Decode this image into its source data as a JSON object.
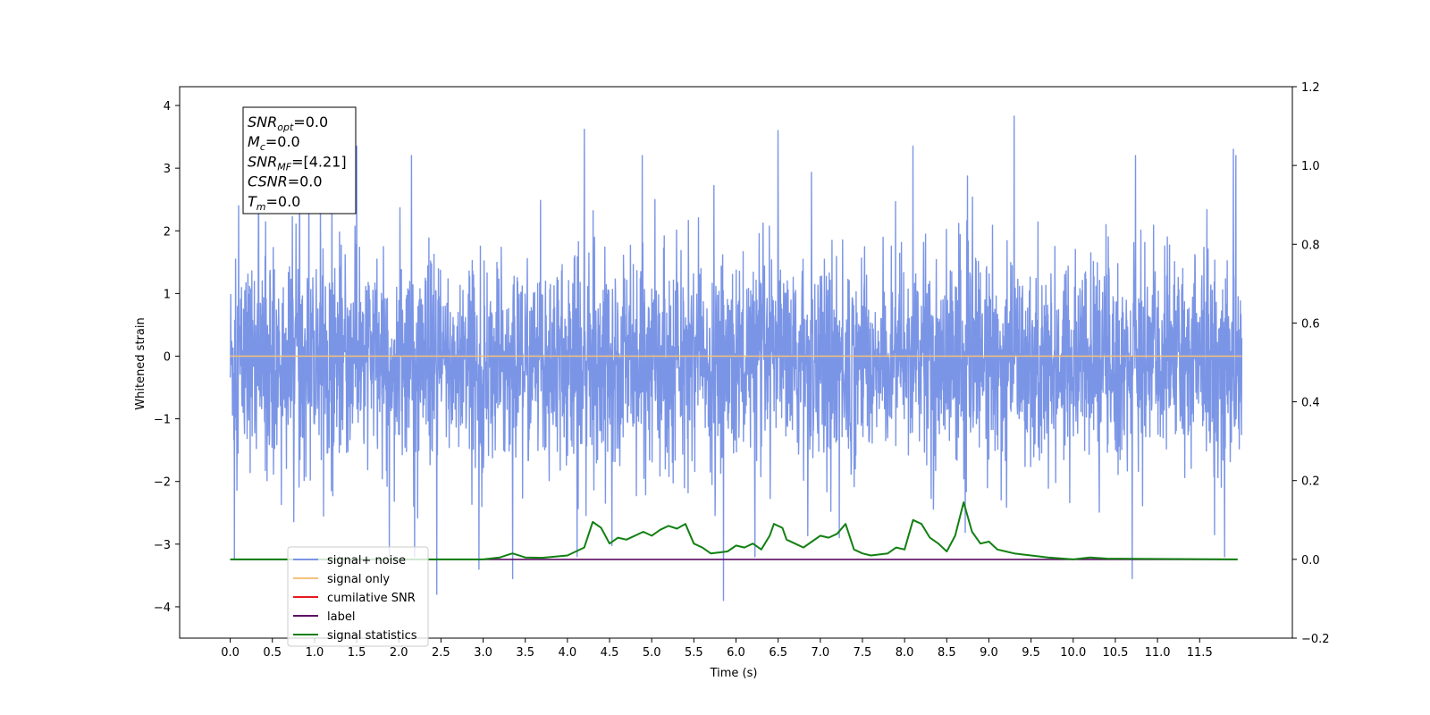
{
  "chart_data": {
    "type": "line",
    "xlabel": "Time (s)",
    "ylabel": "Whitened strain",
    "xlim": [
      -0.6,
      12.6
    ],
    "ylim": [
      -4.5,
      4.3
    ],
    "y2lim": [
      -0.2,
      1.2
    ],
    "x_ticks": [
      "0.0",
      "0.5",
      "1.0",
      "1.5",
      "2.0",
      "2.5",
      "3.0",
      "3.5",
      "4.0",
      "4.5",
      "5.0",
      "5.5",
      "6.0",
      "6.5",
      "7.0",
      "7.5",
      "8.0",
      "8.5",
      "9.0",
      "9.5",
      "10.0",
      "10.5",
      "11.0",
      "11.5"
    ],
    "y_ticks": [
      "4",
      "3",
      "2",
      "1",
      "0",
      "−1",
      "−2",
      "−3",
      "−4"
    ],
    "y2_ticks": [
      "1.2",
      "1.0",
      "0.8",
      "0.6",
      "0.4",
      "0.2",
      "0.0",
      "−0.2"
    ],
    "colors": {
      "signal_noise": "#7b95e6",
      "signal_only": "#f5c27a",
      "cumulative_snr": "#e8191f",
      "label": "#5b0d63",
      "signal_statistics": "#128012"
    },
    "legend": {
      "position": "lower-left",
      "entries": [
        "signal+ noise",
        "signal only",
        "cumilative SNR",
        "label",
        "signal statistics"
      ]
    },
    "annotation_lines": [
      {
        "name": "SNR",
        "sub": "opt",
        "rest": "=0.0"
      },
      {
        "name": "M",
        "sub": "c",
        "rest": "=0.0"
      },
      {
        "name": "SNR",
        "sub": "MF",
        "rest": "=[4.21]"
      },
      {
        "name": "CSNR",
        "sub": "",
        "rest": "=0.0"
      },
      {
        "name": "T",
        "sub": "m",
        "rest": "=0.0"
      }
    ],
    "series": [
      {
        "name": "signal+ noise",
        "axis": "left",
        "x_range": [
          0.0,
          12.0
        ],
        "typical_band": [
          -1.5,
          1.3
        ],
        "peaks": [
          {
            "x": 0.05,
            "y": -3.25
          },
          {
            "x": 0.1,
            "y": 2.4
          },
          {
            "x": 1.5,
            "y": 3.35
          },
          {
            "x": 2.15,
            "y": 3.2
          },
          {
            "x": 2.45,
            "y": -3.8
          },
          {
            "x": 2.95,
            "y": -3.4
          },
          {
            "x": 3.35,
            "y": -3.55
          },
          {
            "x": 4.2,
            "y": 3.62
          },
          {
            "x": 5.85,
            "y": -3.9
          },
          {
            "x": 6.5,
            "y": 3.6
          },
          {
            "x": 8.1,
            "y": 3.35
          },
          {
            "x": 9.3,
            "y": 3.83
          },
          {
            "x": 10.7,
            "y": -3.55
          },
          {
            "x": 11.9,
            "y": 3.3
          }
        ]
      },
      {
        "name": "signal only",
        "axis": "left",
        "x": [
          0.0,
          12.0
        ],
        "values": [
          0.0,
          0.0
        ]
      },
      {
        "name": "label",
        "axis": "right",
        "x": [
          0.0,
          11.95
        ],
        "values": [
          0.0,
          0.0
        ]
      },
      {
        "name": "signal statistics",
        "axis": "right",
        "x": [
          0.0,
          3.0,
          3.2,
          3.3,
          3.35,
          3.5,
          3.7,
          4.0,
          4.2,
          4.3,
          4.4,
          4.5,
          4.6,
          4.7,
          4.9,
          5.0,
          5.1,
          5.2,
          5.3,
          5.4,
          5.5,
          5.6,
          5.7,
          5.9,
          6.0,
          6.1,
          6.2,
          6.3,
          6.4,
          6.45,
          6.55,
          6.6,
          6.7,
          6.8,
          6.9,
          7.0,
          7.1,
          7.2,
          7.3,
          7.4,
          7.5,
          7.6,
          7.8,
          7.9,
          8.0,
          8.1,
          8.2,
          8.3,
          8.4,
          8.5,
          8.6,
          8.7,
          8.8,
          8.9,
          9.0,
          9.1,
          9.2,
          9.3,
          9.5,
          9.7,
          10.0,
          10.2,
          10.4,
          11.95
        ],
        "values": [
          0.0,
          0.0,
          0.005,
          0.012,
          0.015,
          0.005,
          0.004,
          0.01,
          0.03,
          0.095,
          0.08,
          0.04,
          0.055,
          0.05,
          0.07,
          0.06,
          0.075,
          0.085,
          0.078,
          0.09,
          0.04,
          0.03,
          0.015,
          0.02,
          0.035,
          0.03,
          0.04,
          0.025,
          0.06,
          0.09,
          0.08,
          0.05,
          0.04,
          0.03,
          0.045,
          0.06,
          0.055,
          0.065,
          0.09,
          0.025,
          0.015,
          0.01,
          0.015,
          0.03,
          0.025,
          0.1,
          0.09,
          0.055,
          0.04,
          0.02,
          0.06,
          0.145,
          0.07,
          0.04,
          0.045,
          0.025,
          0.02,
          0.015,
          0.01,
          0.005,
          0.0,
          0.005,
          0.002,
          0.0
        ]
      }
    ]
  }
}
